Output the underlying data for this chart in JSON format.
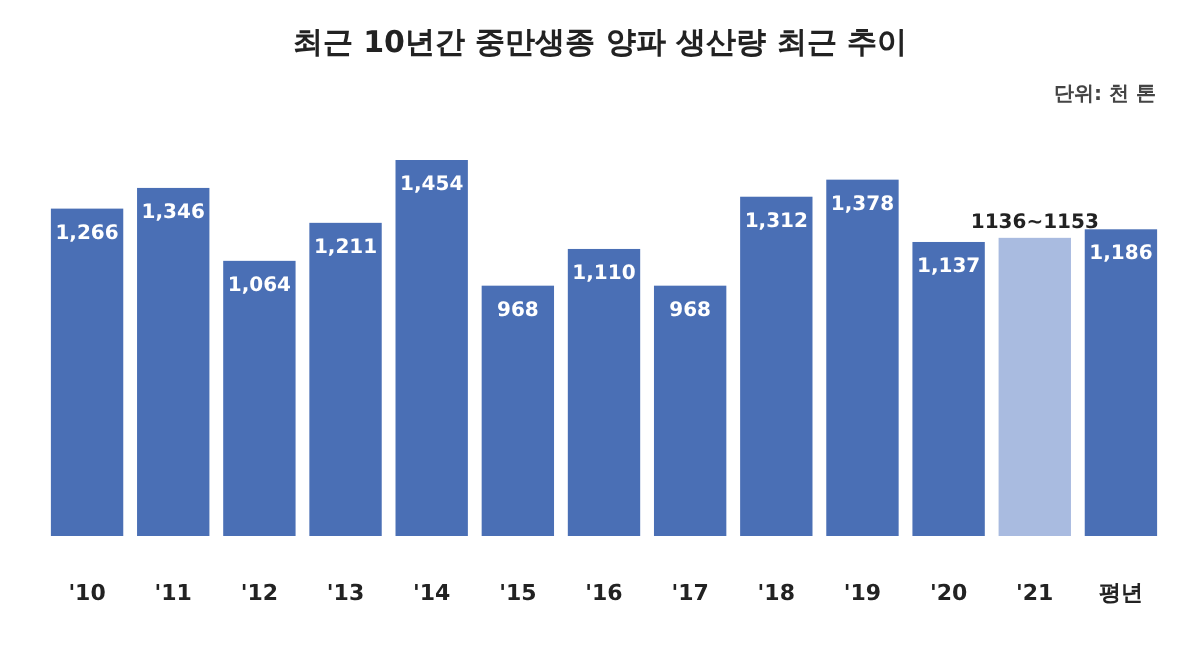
{
  "chart_data": {
    "type": "bar",
    "title": "최근 10년간 중만생종 양파 생산량 최근 추이",
    "annotations": [
      "단위: 천 톤"
    ],
    "categories": [
      "'10",
      "'11",
      "'12",
      "'13",
      "'14",
      "'15",
      "'16",
      "'17",
      "'18",
      "'19",
      "'20",
      "'21",
      "평년"
    ],
    "values": [
      1266,
      1346,
      1064,
      1211,
      1454,
      968,
      1110,
      968,
      1312,
      1378,
      1137,
      1153,
      1186
    ],
    "value_labels": [
      "1,266",
      "1,346",
      "1,064",
      "1,211",
      "1,454",
      "968",
      "1,110",
      "968",
      "1,312",
      "1,378",
      "1,137",
      "1136~1153",
      "1,186"
    ],
    "colors": [
      "#4a6fb5",
      "#4a6fb5",
      "#4a6fb5",
      "#4a6fb5",
      "#4a6fb5",
      "#4a6fb5",
      "#4a6fb5",
      "#4a6fb5",
      "#4a6fb5",
      "#4a6fb5",
      "#4a6fb5",
      "#a9bbe0",
      "#4a6fb5"
    ]
  }
}
